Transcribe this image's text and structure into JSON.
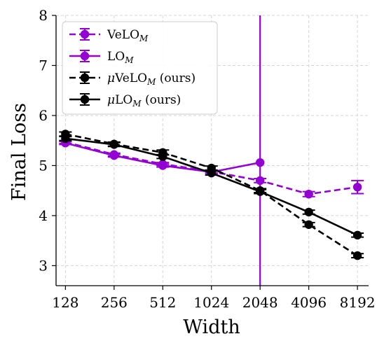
{
  "chart_data": {
    "type": "line",
    "xlabel": "Width",
    "ylabel": "Final Loss",
    "x": [
      128,
      256,
      512,
      1024,
      2048,
      4096,
      8192
    ],
    "x_ticks": [
      "128",
      "256",
      "512",
      "1024",
      "2048",
      "4096",
      "8192"
    ],
    "x_scale": "log2",
    "ylim": [
      2.6,
      8.0
    ],
    "y_ticks": [
      "3",
      "4",
      "5",
      "6",
      "7",
      "8"
    ],
    "grid": true,
    "legend_position": "top-left",
    "series": [
      {
        "name": "VeLO",
        "name_sub": "M",
        "name_suffix": "",
        "prefix_mu": false,
        "color": "#9400d3",
        "dashed": true,
        "x": [
          128,
          256,
          512,
          1024,
          2048,
          4096,
          8192
        ],
        "values": [
          5.47,
          5.22,
          5.03,
          4.88,
          4.7,
          4.43,
          4.57
        ],
        "errors": [
          0.03,
          0.03,
          0.03,
          0.03,
          0.04,
          0.05,
          0.13
        ]
      },
      {
        "name": "LO",
        "name_sub": "M",
        "name_suffix": "",
        "prefix_mu": false,
        "color": "#9400d3",
        "dashed": false,
        "x": [
          128,
          256,
          512,
          1024,
          2048
        ],
        "values": [
          5.45,
          5.2,
          5.0,
          4.87,
          5.06
        ],
        "errors": [
          0.03,
          0.03,
          0.03,
          0.03,
          3.0
        ]
      },
      {
        "name": "VeLO",
        "name_sub": "M",
        "name_suffix": " (ours)",
        "prefix_mu": true,
        "color": "#000000",
        "dashed": true,
        "x": [
          128,
          256,
          512,
          1024,
          2048,
          4096,
          8192
        ],
        "values": [
          5.63,
          5.43,
          5.26,
          4.95,
          4.5,
          3.82,
          3.2
        ],
        "errors": [
          0.04,
          0.04,
          0.05,
          0.04,
          0.04,
          0.04,
          0.04
        ]
      },
      {
        "name": "LO",
        "name_sub": "M",
        "name_suffix": " (ours)",
        "prefix_mu": true,
        "color": "#000000",
        "dashed": false,
        "x": [
          128,
          256,
          512,
          1024,
          2048,
          4096,
          8192
        ],
        "values": [
          5.54,
          5.42,
          5.18,
          4.85,
          4.48,
          4.07,
          3.61
        ],
        "errors": [
          0.04,
          0.04,
          0.04,
          0.04,
          0.04,
          0.04,
          0.04
        ]
      }
    ]
  }
}
